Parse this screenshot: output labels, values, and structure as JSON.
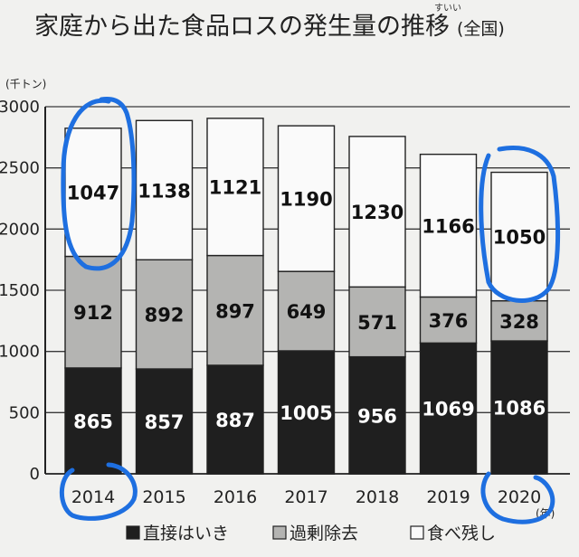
{
  "chart_data": {
    "type": "bar",
    "stacked": true,
    "title": "家庭から出た食品ロスの発生量の推移",
    "title_suffix": "(全国)",
    "title_ruby": "すいい",
    "y_unit": "(千トン)",
    "x_unit": "(年)",
    "ylim": [
      0,
      3000
    ],
    "yticks": [
      0,
      500,
      1000,
      1500,
      2000,
      2500,
      3000
    ],
    "grid": true,
    "legend_position": "bottom",
    "categories": [
      "2014",
      "2015",
      "2016",
      "2017",
      "2018",
      "2019",
      "2020"
    ],
    "series": [
      {
        "name": "直接はいき",
        "values": [
          865,
          857,
          887,
          1005,
          956,
          1069,
          1086
        ],
        "color": "#1f1f1f",
        "label_color": "#ffffff"
      },
      {
        "name": "過剰除去",
        "values": [
          912,
          892,
          897,
          649,
          571,
          376,
          328
        ],
        "color": "#b4b4b2",
        "label_color": "#111111"
      },
      {
        "name": "食べ残し",
        "values": [
          1047,
          1138,
          1121,
          1190,
          1230,
          1166,
          1050
        ],
        "color": "#fafafa",
        "label_color": "#111111"
      }
    ],
    "annotation_color": "#1e6fe0"
  }
}
